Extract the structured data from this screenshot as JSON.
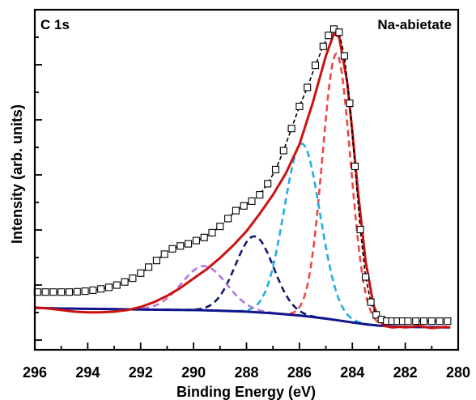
{
  "chart_data": {
    "type": "line",
    "title": "",
    "panel_label": "C 1s",
    "sample_label": "Na-abietate",
    "xlabel": "Binding Energy (eV)",
    "ylabel": "Intensity (arb. units)",
    "xlim": [
      296,
      280
    ],
    "x_reversed": true,
    "x_ticks": [
      "296",
      "294",
      "292",
      "290",
      "288",
      "286",
      "284",
      "282",
      "280"
    ],
    "y_ticks_labeled": false,
    "grid": false,
    "colors": {
      "data": "#000000",
      "envelope": "#cc1111",
      "background": "#10168c",
      "peak_284_6": "#f04848",
      "peak_285_9": "#22aee6",
      "peak_287_7": "#101a6e",
      "peak_289_6": "#b07ad8"
    },
    "series": [
      {
        "role": "data",
        "marker": "open-square",
        "x": [
          295.9,
          295.6,
          295.3,
          295.0,
          294.7,
          294.4,
          294.1,
          293.8,
          293.5,
          293.2,
          292.9,
          292.6,
          292.3,
          292.0,
          291.7,
          291.4,
          291.1,
          290.8,
          290.5,
          290.2,
          289.9,
          289.6,
          289.3,
          289.0,
          288.7,
          288.4,
          288.1,
          287.8,
          287.5,
          287.2,
          286.9,
          286.6,
          286.3,
          286.0,
          285.7,
          285.4,
          285.1,
          284.9,
          284.7,
          284.5,
          284.3,
          284.1,
          283.9,
          283.7,
          283.5,
          283.3,
          283.1,
          282.9,
          282.7,
          282.5,
          282.3,
          282.1,
          281.9,
          281.6,
          281.3,
          281.0,
          280.7,
          280.4
        ],
        "y": [
          0.152,
          0.152,
          0.152,
          0.152,
          0.152,
          0.153,
          0.155,
          0.158,
          0.162,
          0.167,
          0.174,
          0.184,
          0.196,
          0.212,
          0.231,
          0.252,
          0.272,
          0.289,
          0.298,
          0.305,
          0.315,
          0.325,
          0.34,
          0.36,
          0.385,
          0.41,
          0.425,
          0.44,
          0.46,
          0.495,
          0.54,
          0.6,
          0.67,
          0.74,
          0.8,
          0.87,
          0.93,
          0.965,
          0.985,
          0.975,
          0.9,
          0.75,
          0.55,
          0.35,
          0.2,
          0.12,
          0.08,
          0.065,
          0.06,
          0.06,
          0.06,
          0.06,
          0.06,
          0.06,
          0.06,
          0.06,
          0.06,
          0.06
        ]
      },
      {
        "role": "envelope",
        "x": [
          296,
          295.5,
          295,
          294.5,
          294,
          293.5,
          293,
          292.5,
          292,
          291.5,
          291,
          290.5,
          290,
          289.5,
          289,
          288.5,
          288,
          287.5,
          287,
          286.5,
          286,
          285.5,
          285,
          284.7,
          284.5,
          284.2,
          284,
          283.8,
          283.5,
          283.2,
          283,
          282.8,
          282.5,
          282.2,
          282,
          281.5,
          281,
          280.5,
          280.3
        ],
        "y": [
          0.103,
          0.1,
          0.095,
          0.09,
          0.088,
          0.088,
          0.09,
          0.095,
          0.105,
          0.12,
          0.14,
          0.165,
          0.195,
          0.225,
          0.26,
          0.3,
          0.345,
          0.4,
          0.46,
          0.53,
          0.62,
          0.75,
          0.9,
          0.97,
          0.96,
          0.82,
          0.66,
          0.48,
          0.25,
          0.11,
          0.07,
          0.045,
          0.04,
          0.042,
          0.04,
          0.045,
          0.038,
          0.042,
          0.04
        ]
      },
      {
        "role": "background",
        "x": [
          296,
          295,
          294,
          293,
          292,
          291,
          290,
          289,
          288,
          287,
          286,
          285.5,
          285,
          284.5,
          284,
          283.5,
          283,
          282.5,
          282,
          281,
          280.3
        ],
        "y": [
          0.102,
          0.1,
          0.099,
          0.098,
          0.097,
          0.096,
          0.095,
          0.093,
          0.09,
          0.085,
          0.078,
          0.073,
          0.068,
          0.062,
          0.056,
          0.05,
          0.046,
          0.043,
          0.042,
          0.041,
          0.04
        ]
      },
      {
        "role": "component",
        "center": 284.6,
        "amplitude": 0.844,
        "fwhm": 1.25
      },
      {
        "role": "component",
        "center": 285.9,
        "amplitude": 0.545,
        "fwhm": 1.6
      },
      {
        "role": "component",
        "center": 287.7,
        "amplitude": 0.24,
        "fwhm": 1.7
      },
      {
        "role": "component",
        "center": 289.6,
        "amplitude": 0.14,
        "fwhm": 2.0
      }
    ]
  }
}
